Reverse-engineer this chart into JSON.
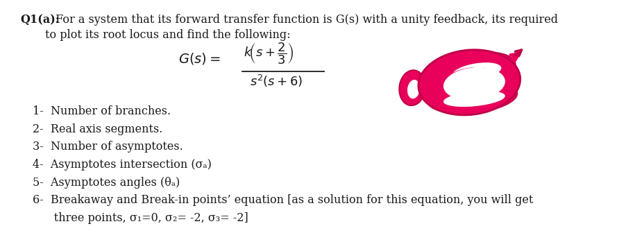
{
  "title_bold": "Q1(a):",
  "title_text": " For a system that its forward transfer function is G(s) with a unity feedback, its required",
  "title_line2": "to plot its root locus and find the following:",
  "items": [
    "1-  Number of branches.",
    "2-  Real axis segments.",
    "3-  Number of asymptotes.",
    "4-  Asymptotes intersection (σₐ)",
    "5-  Asymptotes angles (θₐ)",
    "6-  Breakaway and Break-in points’ equation [as a solution for this equation, you will get"
  ],
  "item6_line2": "      three points, σ₁=0, σ₂= -2, σ₃= -2]",
  "bg_color": "#ffffff",
  "text_color": "#1a1a1a",
  "font_size_main": 10.5,
  "font_size_formula": 12,
  "red_color": "#e8005a",
  "red_edge": "#c00048",
  "fig_width": 9.03,
  "fig_height": 3.36
}
